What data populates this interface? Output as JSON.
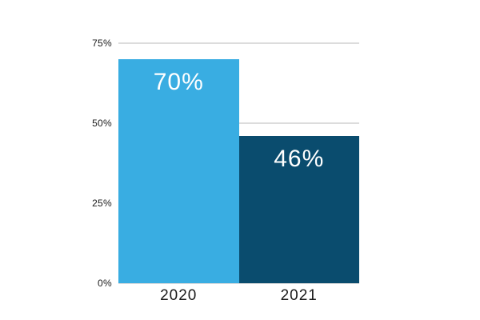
{
  "chart_data": {
    "type": "bar",
    "categories": [
      "2020",
      "2021"
    ],
    "values": [
      70,
      46
    ],
    "value_labels": [
      "70%",
      "46%"
    ],
    "series_colors": [
      "#39ade2",
      "#0a4c6e"
    ],
    "title": "",
    "xlabel": "",
    "ylabel": "",
    "ylim": [
      0,
      75
    ],
    "yticks": [
      75,
      50,
      25,
      0
    ],
    "ytick_labels": [
      "75%",
      "50%",
      "25%",
      "0%"
    ],
    "grid": true,
    "legend": "none",
    "colors": {
      "background": "#ffffff",
      "gridline": "#dcdcdc",
      "axis_text": "#1a1a1a",
      "bar_value_text": "#ffffff"
    }
  }
}
